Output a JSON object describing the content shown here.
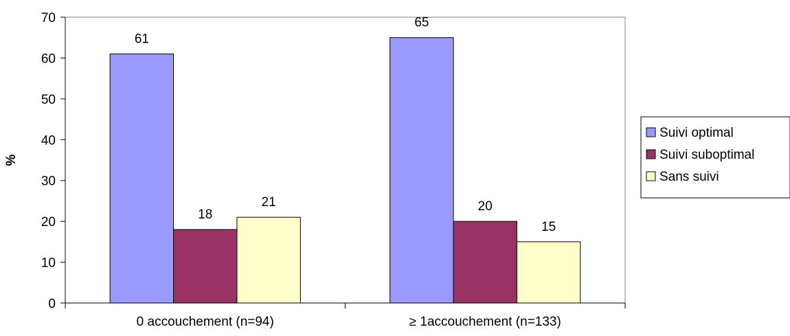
{
  "chart_data": {
    "type": "bar",
    "title": "",
    "xlabel": "",
    "ylabel": "%",
    "ylim": [
      0,
      70
    ],
    "yticks": [
      0,
      10,
      20,
      30,
      40,
      50,
      60,
      70
    ],
    "categories": [
      "0 accouchement (n=94)",
      "≥ 1accouchement (n=133)"
    ],
    "series": [
      {
        "name": "Suivi optimal",
        "values": [
          61,
          65
        ],
        "color": "#9999ff"
      },
      {
        "name": "Suivi suboptimal",
        "values": [
          18,
          20
        ],
        "color": "#993366"
      },
      {
        "name": "Sans suivi",
        "values": [
          21,
          15
        ],
        "color": "#ffffcc"
      }
    ],
    "data_labels": [
      [
        "61",
        "65"
      ],
      [
        "18",
        "20"
      ],
      [
        "21",
        "15"
      ]
    ],
    "legend_position": "right",
    "grid": false
  }
}
